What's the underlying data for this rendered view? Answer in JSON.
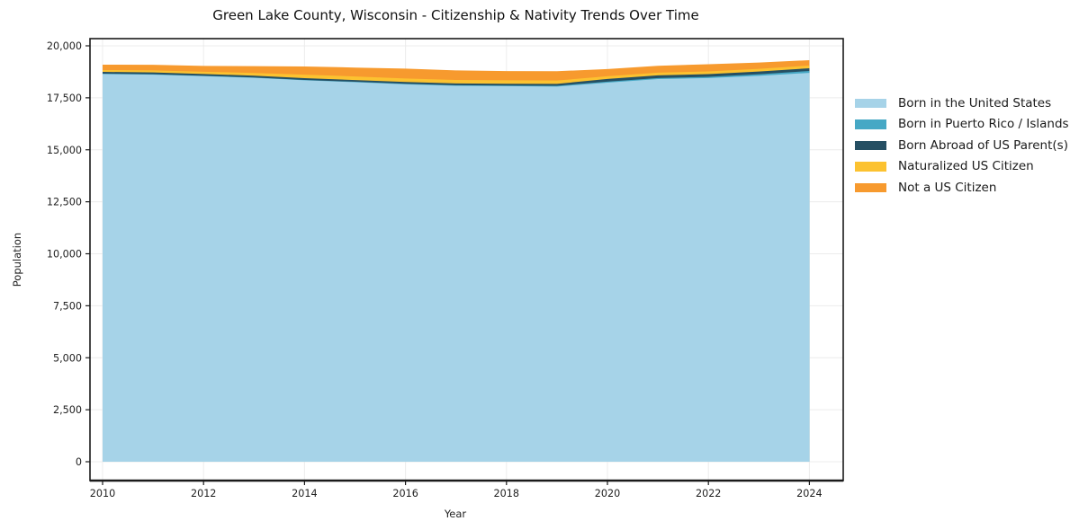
{
  "chart_data": {
    "type": "area",
    "stacked": true,
    "title": "Green Lake County, Wisconsin - Citizenship & Nativity Trends Over Time",
    "xlabel": "Year",
    "ylabel": "Population",
    "grid": true,
    "legend_position": "right",
    "xlim": [
      2009.75,
      2024.67
    ],
    "ylim": [
      -900,
      20350
    ],
    "x": [
      2010,
      2011,
      2012,
      2013,
      2014,
      2015,
      2016,
      2017,
      2018,
      2019,
      2020,
      2021,
      2022,
      2023,
      2024
    ],
    "series": [
      {
        "name": "Born in the United States",
        "color": "#a6d3e8",
        "values": [
          18640,
          18615,
          18540,
          18460,
          18340,
          18250,
          18150,
          18080,
          18060,
          18040,
          18230,
          18400,
          18450,
          18560,
          18700
        ]
      },
      {
        "name": "Born in Puerto Rico / Islands",
        "color": "#46a8c5",
        "values": [
          20,
          20,
          20,
          20,
          20,
          20,
          25,
          25,
          30,
          40,
          45,
          50,
          60,
          75,
          90
        ]
      },
      {
        "name": "Born Abroad of US Parent(s)",
        "color": "#254f63",
        "values": [
          85,
          85,
          85,
          85,
          85,
          85,
          85,
          85,
          85,
          90,
          130,
          130,
          130,
          130,
          130
        ]
      },
      {
        "name": "Naturalized US Citizen",
        "color": "#fcc230",
        "values": [
          90,
          100,
          110,
          130,
          170,
          170,
          170,
          170,
          170,
          160,
          130,
          130,
          130,
          130,
          130
        ]
      },
      {
        "name": "Not a US Citizen",
        "color": "#f79a2e",
        "values": [
          260,
          270,
          280,
          330,
          390,
          430,
          475,
          460,
          440,
          450,
          345,
          330,
          345,
          300,
          260
        ]
      }
    ],
    "xticks": {
      "values": [
        2010,
        2012,
        2014,
        2016,
        2018,
        2020,
        2022,
        2024
      ],
      "labels": [
        "2010",
        "2012",
        "2014",
        "2016",
        "2018",
        "2020",
        "2022",
        "2024"
      ]
    },
    "yticks": {
      "values": [
        0,
        2500,
        5000,
        7500,
        10000,
        12500,
        15000,
        17500,
        20000
      ],
      "labels": [
        "0",
        "2,500",
        "5,000",
        "7,500",
        "10,000",
        "12,500",
        "15,000",
        "17,500",
        "20,000"
      ]
    },
    "colors": {
      "grid": "#ececec",
      "axis": "#1a1a1a",
      "background": "#ffffff"
    }
  }
}
